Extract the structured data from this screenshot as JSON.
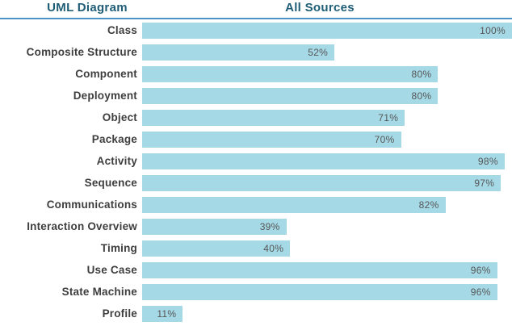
{
  "header": {
    "left_title": "UML Diagram",
    "right_title": "All Sources"
  },
  "colors": {
    "background": "#FFFFFF",
    "bar": "#A5D9E6",
    "header_text": "#1E5D75",
    "divider": "#4C94C6",
    "category_label": "#3E3E3E",
    "value_label": "#575757"
  },
  "chart_data": {
    "type": "bar",
    "orientation": "horizontal",
    "title": "All Sources",
    "column_header": "UML Diagram",
    "categories": [
      "Class",
      "Composite Structure",
      "Component",
      "Deployment",
      "Object",
      "Package",
      "Activity",
      "Sequence",
      "Communications",
      "Interaction Overview",
      "Timing",
      "Use Case",
      "State Machine",
      "Profile"
    ],
    "values": [
      100,
      52,
      80,
      80,
      71,
      70,
      98,
      97,
      82,
      39,
      40,
      96,
      96,
      11
    ],
    "value_suffix": "%",
    "value_labels_position": "inside-end",
    "xlim": [
      0,
      100
    ],
    "grid": false,
    "legend": false
  }
}
